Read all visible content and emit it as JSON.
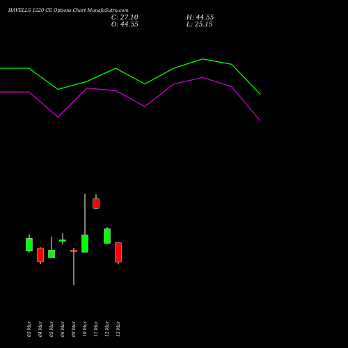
{
  "chart_data": {
    "type": "candlestick",
    "title": "HAVELLS 1220  CE Options  Chart MunafaSutra.com",
    "ohlc_readout": {
      "close": "C: 27.10",
      "open": "O: 44.55",
      "high": "H: 44.55",
      "low": "L: 25.15"
    },
    "categories": [
      "03 Mar",
      "04 Mar",
      "05 Mar",
      "06 Mar",
      "09 Mar",
      "10 Mar",
      "11 Mar",
      "12 Mar",
      "13 Mar"
    ],
    "candles": [
      {
        "o": 37.0,
        "h": 52.0,
        "l": 36.0,
        "c": 48.5
      },
      {
        "o": 39.5,
        "h": 40.5,
        "l": 25.5,
        "c": 27.5
      },
      {
        "o": 31.0,
        "h": 50.0,
        "l": 31.0,
        "c": 38.0
      },
      {
        "o": 46.5,
        "h": 53.0,
        "l": 43.0,
        "c": 47.0
      },
      {
        "o": 38.0,
        "h": 40.0,
        "l": 6.5,
        "c": 37.0
      },
      {
        "o": 36.0,
        "h": 88.5,
        "l": 36.0,
        "c": 51.5
      },
      {
        "o": 84.0,
        "h": 88.0,
        "l": 75.0,
        "c": 75.5
      },
      {
        "o": 44.0,
        "h": 58.5,
        "l": 43.5,
        "c": 57.0
      },
      {
        "o": 44.55,
        "h": 44.55,
        "l": 25.15,
        "c": 27.1
      }
    ],
    "ylim": [
      0,
      100
    ],
    "upper_line": {
      "color": "#00ff00",
      "values": [
        80,
        80,
        64,
        70,
        80,
        68,
        80,
        87,
        83,
        60
      ]
    },
    "lower_line": {
      "color": "#cc00cc",
      "values": [
        62,
        62,
        43,
        65,
        63,
        51,
        68,
        73,
        66,
        40
      ]
    },
    "line_ylim": [
      0,
      100
    ],
    "colors": {
      "up": "#00ff00",
      "down": "#ff0000",
      "wick": "#ffffff",
      "background": "#000000"
    }
  }
}
